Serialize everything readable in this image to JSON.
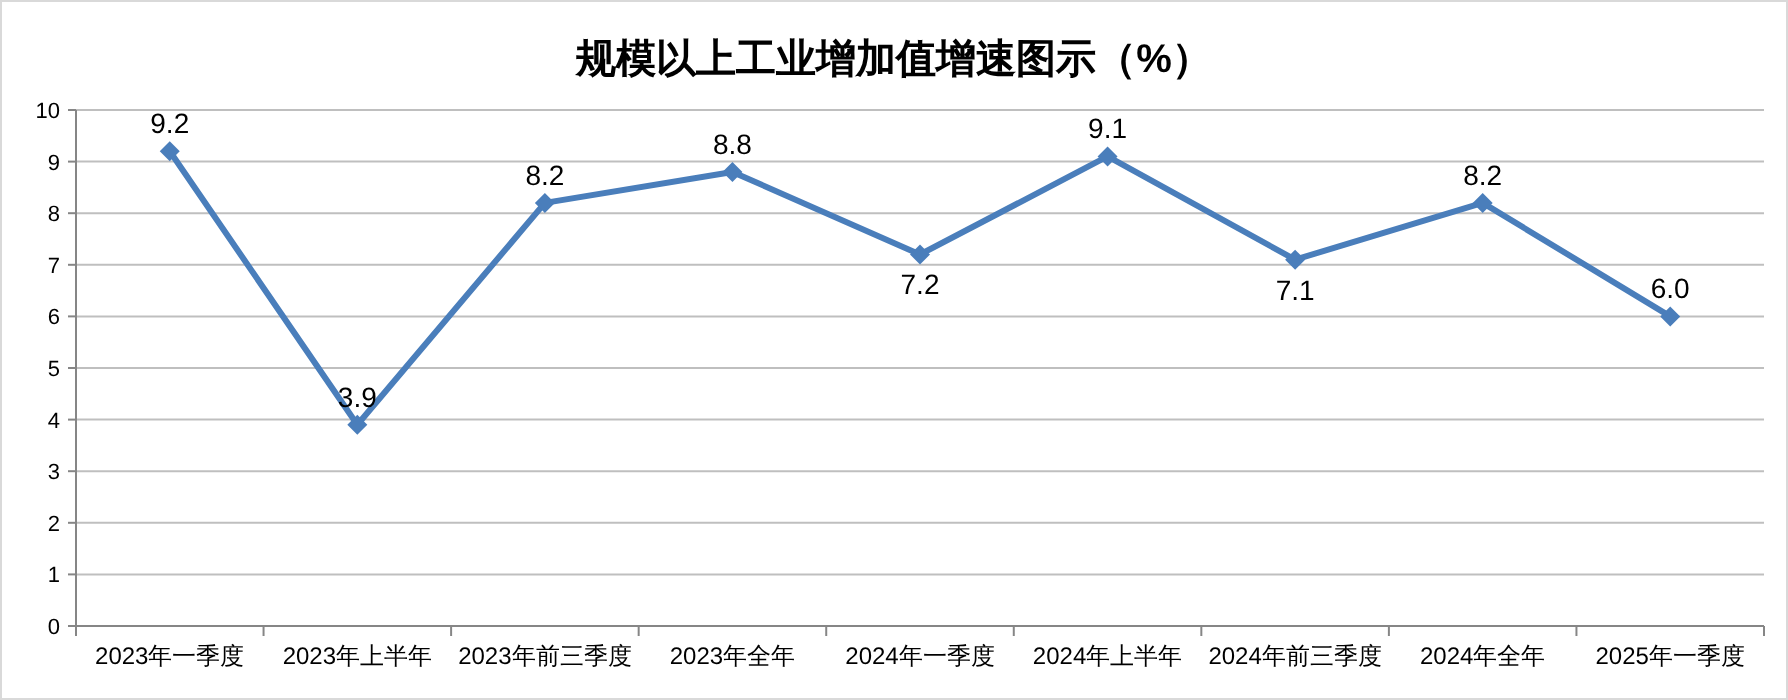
{
  "chart_data": {
    "type": "line",
    "title": "规模以上工业增加值增速图示（%）",
    "categories": [
      "2023年一季度",
      "2023年上半年",
      "2023年前三季度",
      "2023年全年",
      "2024年一季度",
      "2024年上半年",
      "2024年前三季度",
      "2024年全年",
      "2025年一季度"
    ],
    "series": [
      {
        "color": "#4a7ebb",
        "values": [
          9.2,
          3.9,
          8.2,
          8.8,
          7.2,
          9.1,
          7.1,
          8.2,
          6.0
        ],
        "value_labels": [
          "9.2",
          "3.9",
          "8.2",
          "8.8",
          "7.2",
          "9.1",
          "7.1",
          "8.2",
          "6.0"
        ]
      }
    ],
    "ylim": [
      0,
      10
    ],
    "yticks": [
      0,
      1,
      2,
      3,
      4,
      5,
      6,
      7,
      8,
      9,
      10
    ],
    "grid": "y",
    "marker": "diamond"
  }
}
